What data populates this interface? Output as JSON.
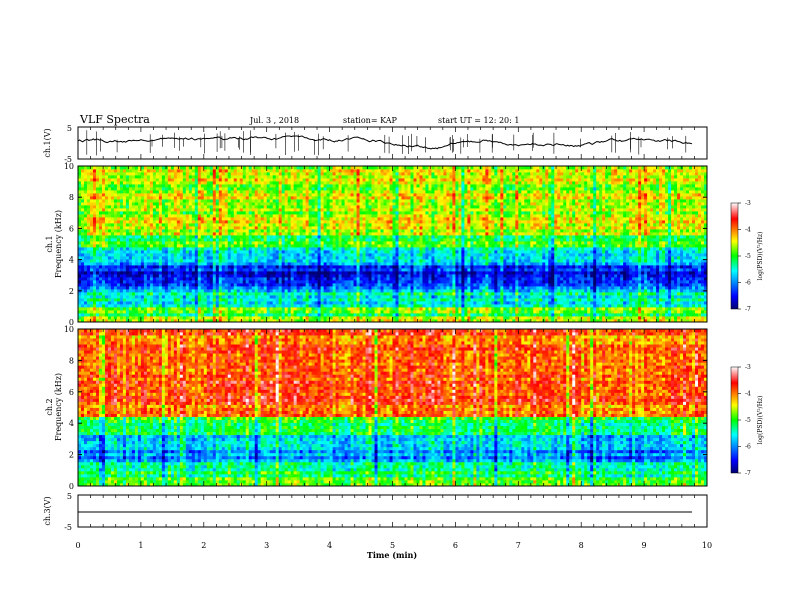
{
  "header": {
    "title": "VLF Spectra",
    "date": "Jul. 3 , 2018",
    "station": "station= KAP",
    "start": "start  UT =  12: 20: 1"
  },
  "chart_data": [
    {
      "type": "line",
      "name": "ch1-waveform",
      "ylabel": "ch.1(V)",
      "ylim": [
        -5,
        5
      ],
      "yticks": [
        "5",
        "-5"
      ],
      "xlim": [
        0,
        10
      ],
      "approx_level_v": 0.5
    },
    {
      "type": "heatmap",
      "name": "ch1-spectrogram",
      "ylabel": "ch.1\nFrequency (kHz)",
      "ylim": [
        0,
        10
      ],
      "yticks": [
        "0",
        "2",
        "4",
        "6",
        "8",
        "10"
      ],
      "xlim": [
        0,
        10
      ],
      "colorbar": {
        "label": "log(PSD)(V²/Hz)",
        "ticks": [
          "-3",
          "-4",
          "-5",
          "-6",
          "-7"
        ],
        "range": [
          -7,
          -3
        ]
      },
      "bands": [
        {
          "f": [
            0,
            0.4
          ],
          "psd": -4.6
        },
        {
          "f": [
            0.4,
            0.9
          ],
          "psd": -5.0
        },
        {
          "f": [
            0.9,
            1.9
          ],
          "psd": -5.5
        },
        {
          "f": [
            1.9,
            2.3
          ],
          "psd": -6.0
        },
        {
          "f": [
            2.3,
            3.6
          ],
          "psd": -6.5
        },
        {
          "f": [
            3.6,
            4.8
          ],
          "psd": -5.7
        },
        {
          "f": [
            4.8,
            5.6
          ],
          "psd": -5.0
        },
        {
          "f": [
            5.6,
            10
          ],
          "psd": -4.6
        }
      ]
    },
    {
      "type": "heatmap",
      "name": "ch2-spectrogram",
      "ylabel": "ch.2\nFrequency (kHz)",
      "ylim": [
        0,
        10
      ],
      "yticks": [
        "0",
        "2",
        "4",
        "6",
        "8",
        "10"
      ],
      "xlim": [
        0,
        10
      ],
      "colorbar": {
        "label": "log(PSD)(V²/Hz)",
        "ticks": [
          "-3",
          "-4",
          "-5",
          "-6",
          "-7"
        ],
        "range": [
          -7,
          -3
        ]
      },
      "bands": [
        {
          "f": [
            0,
            0.5
          ],
          "psd": -4.8
        },
        {
          "f": [
            0.5,
            1.5
          ],
          "psd": -5.3
        },
        {
          "f": [
            1.5,
            3.3
          ],
          "psd": -5.9
        },
        {
          "f": [
            3.3,
            4.5
          ],
          "psd": -5.1
        },
        {
          "f": [
            4.5,
            10
          ],
          "psd": -3.9
        }
      ]
    },
    {
      "type": "line",
      "name": "ch3-waveform",
      "ylabel": "ch.3(V)",
      "ylim": [
        -5,
        5
      ],
      "yticks": [
        "5",
        "-5"
      ],
      "xlim": [
        0,
        10
      ],
      "approx_level_v": 0
    }
  ],
  "xaxis": {
    "label": "Time (min)",
    "ticks": [
      "0",
      "1",
      "2",
      "3",
      "4",
      "5",
      "6",
      "7",
      "8",
      "9",
      "10"
    ]
  }
}
